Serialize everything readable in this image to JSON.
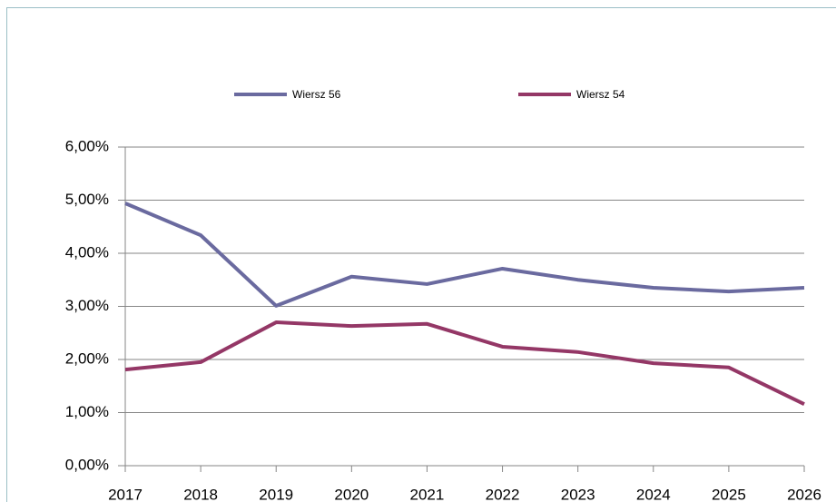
{
  "chart_data": {
    "type": "line",
    "categories": [
      "2017",
      "2018",
      "2019",
      "2020",
      "2021",
      "2022",
      "2023",
      "2024",
      "2025",
      "2026"
    ],
    "series": [
      {
        "name": "Wiersz 56",
        "color": "#6a6a9f",
        "values": [
          4.94,
          4.34,
          3.01,
          3.56,
          3.42,
          3.71,
          3.5,
          3.35,
          3.28,
          3.35
        ]
      },
      {
        "name": "Wiersz 54",
        "color": "#943766",
        "values": [
          1.81,
          1.95,
          2.7,
          2.63,
          2.67,
          2.24,
          2.14,
          1.93,
          1.85,
          1.16
        ]
      }
    ],
    "ylim": [
      0,
      6
    ],
    "yticks": [
      {
        "value": 0,
        "label": "0,00%"
      },
      {
        "value": 1,
        "label": "1,00%"
      },
      {
        "value": 2,
        "label": "2,00%"
      },
      {
        "value": 3,
        "label": "3,00%"
      },
      {
        "value": 4,
        "label": "4,00%"
      },
      {
        "value": 5,
        "label": "5,00%"
      },
      {
        "value": 6,
        "label": "6,00%"
      }
    ],
    "grid": true,
    "legend": "top"
  }
}
